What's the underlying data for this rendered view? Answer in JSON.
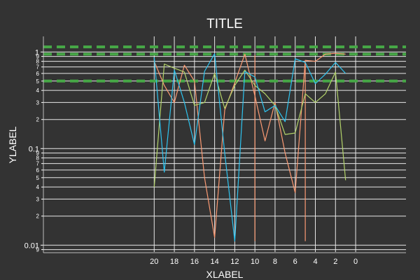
{
  "chart_data": {
    "type": "line",
    "title": "TITLE",
    "xlabel": "XLABEL",
    "ylabel": "YLABEL",
    "x_scale": "linear",
    "x_reversed": true,
    "xlim": [
      -5,
      31
    ],
    "x_ticks": [
      20,
      18,
      16,
      14,
      12,
      10,
      8,
      6,
      4,
      2,
      0
    ],
    "x_tick_labels": [
      "20",
      "18",
      "16",
      "14",
      "12",
      "10",
      "8",
      "6",
      "4",
      "2",
      "0"
    ],
    "y_scale": "log",
    "ylim": [
      0.0085,
      1.45
    ],
    "y_major_ticks": [
      0.01,
      0.1,
      1
    ],
    "y_major_labels": [
      "0.01",
      "0.1",
      "1"
    ],
    "y_minor_ticks": [
      0.009,
      0.02,
      0.03,
      0.04,
      0.05,
      0.06,
      0.07,
      0.08,
      0.09,
      0.2,
      0.3,
      0.4,
      0.5,
      0.6,
      0.7,
      0.8,
      0.9
    ],
    "y_minor_labels": [
      "9",
      "2",
      "3",
      "4",
      "5",
      "6",
      "7",
      "8",
      "9",
      "2",
      "3",
      "4",
      "5",
      "6",
      "7",
      "8",
      "9"
    ],
    "grid": true,
    "colors": {
      "background": "#333333",
      "grid": "#e8e8e8",
      "text": "#ffffff",
      "series": [
        "#fb9a73",
        "#b3d36a",
        "#2ec4f0"
      ],
      "reference_line": "#fb9a73",
      "hlines": "#46a746"
    },
    "series": [
      {
        "color": "#fb9a73",
        "x": [
          20,
          19,
          18,
          17,
          16,
          15,
          14,
          13,
          12,
          11,
          10,
          9,
          8,
          7,
          6,
          5,
          4,
          3,
          2,
          1
        ],
        "y": [
          0.8,
          0.45,
          0.3,
          0.73,
          0.5,
          0.05,
          0.012,
          0.25,
          0.48,
          0.95,
          0.35,
          0.12,
          0.3,
          0.09,
          0.035,
          0.82,
          0.8,
          0.95,
          0.97,
          0.95
        ]
      },
      {
        "color": "#b3d36a",
        "x": [
          20,
          19,
          18,
          17,
          16,
          15,
          14,
          13,
          12,
          11,
          10,
          9,
          8,
          7,
          6,
          5,
          4,
          3,
          2,
          1
        ],
        "y": [
          0.04,
          0.75,
          0.68,
          0.62,
          0.28,
          0.3,
          0.6,
          0.26,
          0.45,
          0.65,
          0.45,
          0.37,
          0.28,
          0.14,
          0.145,
          0.37,
          0.3,
          0.37,
          0.62,
          0.047
        ]
      },
      {
        "color": "#2ec4f0",
        "x": [
          20,
          19,
          18,
          17,
          16,
          15,
          14,
          13,
          12,
          11,
          10,
          9,
          8,
          7,
          6,
          5,
          4,
          3,
          2,
          1
        ],
        "y": [
          0.88,
          0.057,
          0.65,
          0.3,
          0.11,
          0.63,
          0.96,
          0.09,
          0.011,
          0.63,
          0.55,
          0.24,
          0.28,
          0.19,
          0.85,
          0.78,
          0.47,
          0.59,
          0.78,
          0.6
        ]
      }
    ],
    "vertical_segments": [
      {
        "x": 10,
        "y": [
          0.011,
          0.93
        ]
      },
      {
        "x": 5,
        "y": [
          0.011,
          0.81
        ]
      }
    ],
    "horizontal_lines": [
      {
        "y": 1.13
      },
      {
        "y": 0.95
      },
      {
        "y": 0.5
      }
    ]
  }
}
